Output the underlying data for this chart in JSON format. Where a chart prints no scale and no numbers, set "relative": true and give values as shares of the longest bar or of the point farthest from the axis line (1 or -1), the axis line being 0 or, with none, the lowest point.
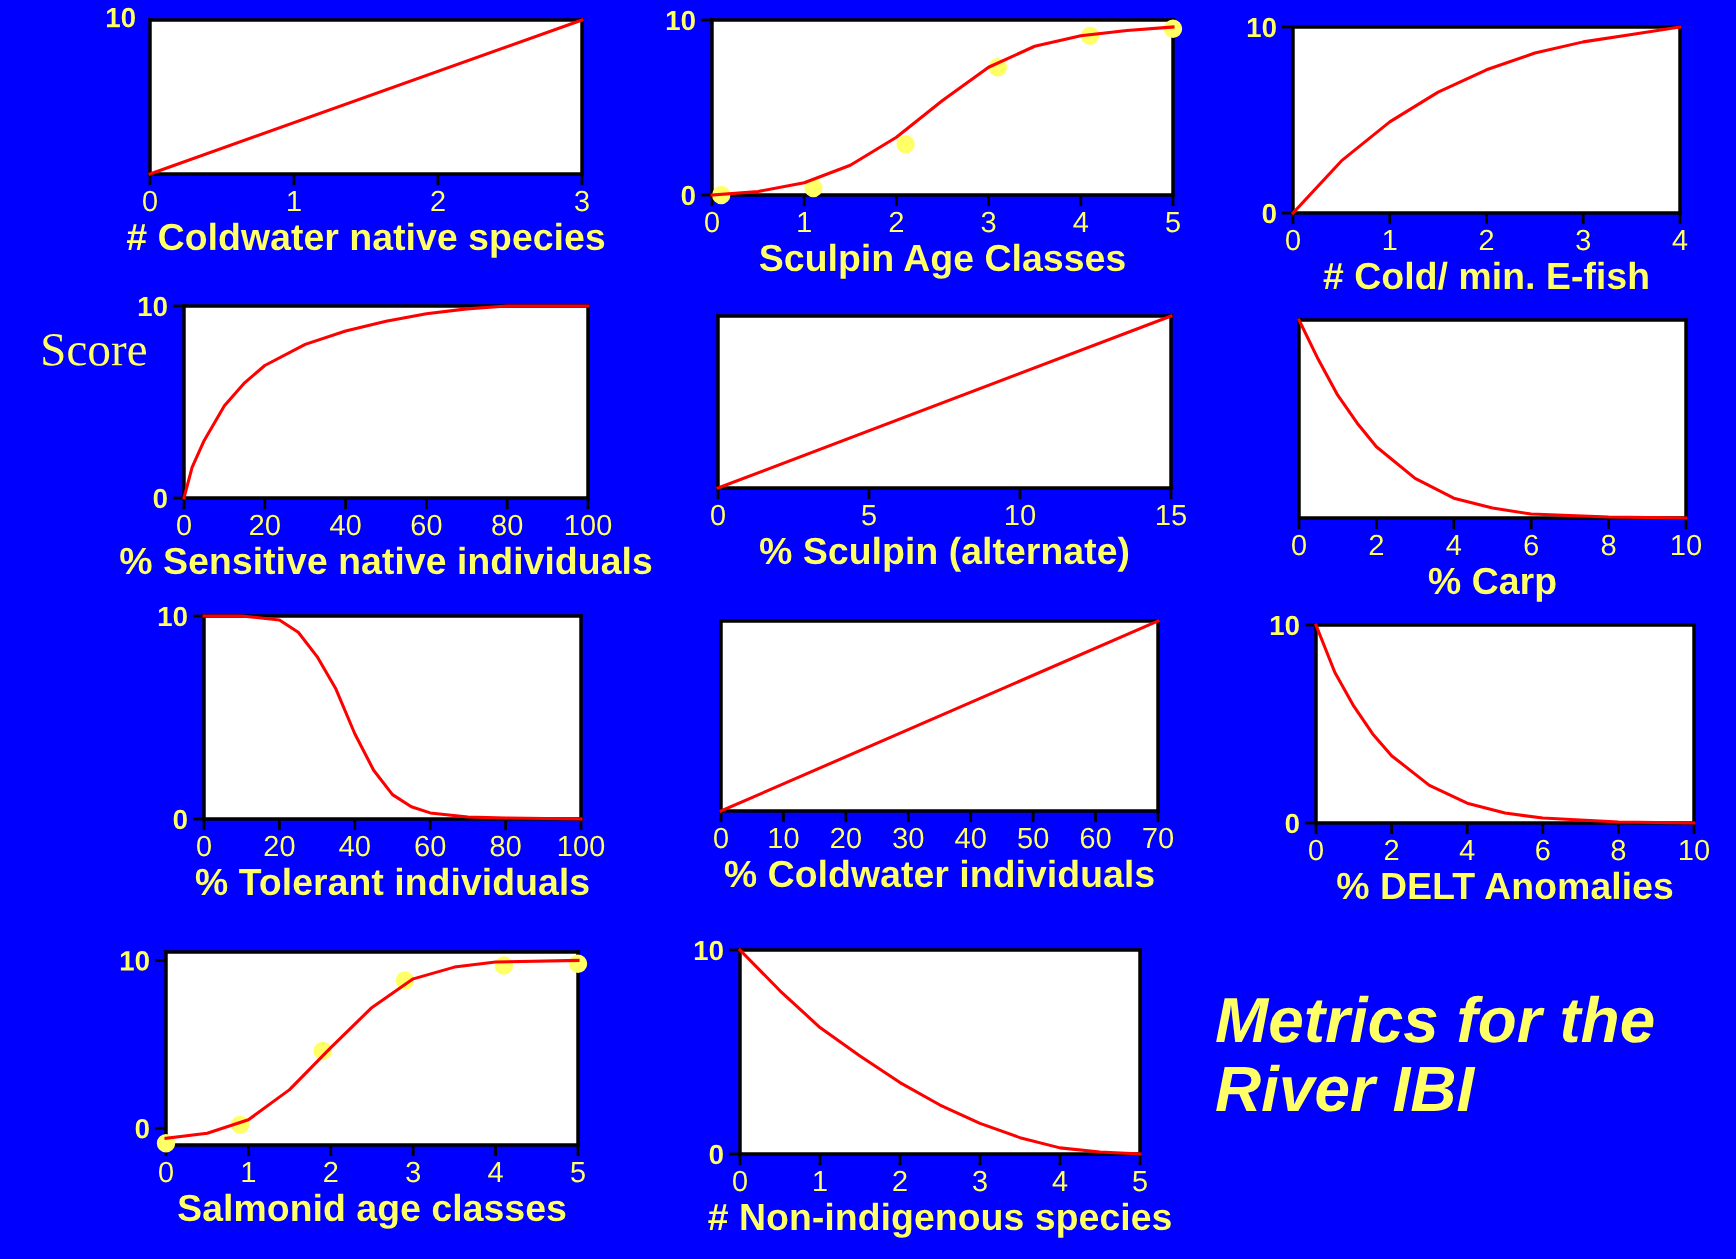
{
  "chart_data": [
    {
      "type": "line",
      "xlabel": "# Coldwater native species",
      "relative": true,
      "xlim": [
        0,
        3
      ],
      "xticks": [
        0,
        1,
        2,
        3
      ],
      "annotations": [
        "10"
      ],
      "series": [
        {
          "type": "line",
          "color": "#ff0000",
          "x": [
            0,
            3
          ],
          "values": [
            0,
            1
          ]
        }
      ]
    },
    {
      "type": "line",
      "xlabel": "Sculpin Age Classes",
      "xlim": [
        0,
        5
      ],
      "xticks": [
        0,
        1,
        2,
        3,
        4,
        5
      ],
      "ylim": [
        0,
        10
      ],
      "yticks": [
        0,
        10
      ],
      "series": [
        {
          "type": "line",
          "color": "#ff0000",
          "x": [
            0,
            0.5,
            1,
            1.5,
            2,
            2.5,
            3,
            3.5,
            4,
            4.5,
            5
          ],
          "values": [
            0,
            0.2,
            0.7,
            1.7,
            3.3,
            5.4,
            7.3,
            8.5,
            9.1,
            9.4,
            9.6
          ]
        },
        {
          "type": "scatter",
          "color": "#ffff66",
          "marker": "circle",
          "x": [
            0.1,
            1.1,
            2.1,
            3.1,
            4.1,
            5
          ],
          "values": [
            0,
            0.4,
            2.9,
            7.3,
            9.1,
            9.5
          ]
        }
      ]
    },
    {
      "type": "line",
      "xlabel": "# Cold/ min. E-fish",
      "xlim": [
        0,
        4
      ],
      "xticks": [
        0,
        1,
        2,
        3,
        4
      ],
      "ylim": [
        0,
        10
      ],
      "yticks": [
        0,
        10
      ],
      "series": [
        {
          "type": "line",
          "color": "#ff0000",
          "x": [
            0,
            0.5,
            1,
            1.5,
            2,
            2.5,
            3,
            3.5,
            4
          ],
          "values": [
            0,
            2.8,
            4.9,
            6.5,
            7.7,
            8.6,
            9.2,
            9.6,
            10
          ]
        }
      ]
    },
    {
      "type": "line",
      "xlabel": "% Sensitive native individuals",
      "ylabel": "Score",
      "xlim": [
        0,
        100
      ],
      "xticks": [
        0,
        20,
        40,
        60,
        80,
        100
      ],
      "ylim": [
        0,
        10
      ],
      "yticks": [
        0,
        10
      ],
      "series": [
        {
          "type": "line",
          "color": "#ff0000",
          "x": [
            0,
            2,
            5,
            10,
            15,
            20,
            30,
            40,
            50,
            60,
            70,
            80,
            100
          ],
          "values": [
            0,
            1.6,
            3,
            4.8,
            6,
            6.9,
            8,
            8.7,
            9.2,
            9.6,
            9.85,
            10,
            10
          ]
        }
      ]
    },
    {
      "type": "line",
      "xlabel": "% Sculpin (alternate)",
      "relative": true,
      "xlim": [
        0,
        15
      ],
      "xticks": [
        0,
        5,
        10,
        15
      ],
      "series": [
        {
          "type": "line",
          "color": "#ff0000",
          "x": [
            0,
            15
          ],
          "values": [
            0,
            1
          ]
        }
      ]
    },
    {
      "type": "line",
      "xlabel": "% Carp",
      "relative": true,
      "xlim": [
        0,
        10
      ],
      "xticks": [
        0,
        2,
        4,
        6,
        8,
        10
      ],
      "series": [
        {
          "type": "line",
          "color": "#ff0000",
          "x": [
            0,
            0.5,
            1,
            1.5,
            2,
            3,
            4,
            5,
            6,
            8,
            10
          ],
          "values": [
            1,
            0.8,
            0.62,
            0.48,
            0.36,
            0.2,
            0.1,
            0.05,
            0.02,
            0.005,
            0
          ]
        }
      ]
    },
    {
      "type": "line",
      "xlabel": "% Tolerant individuals",
      "xlim": [
        0,
        100
      ],
      "xticks": [
        0,
        20,
        40,
        60,
        80,
        100
      ],
      "ylim": [
        0,
        10
      ],
      "yticks": [
        0,
        10
      ],
      "series": [
        {
          "type": "line",
          "color": "#ff0000",
          "x": [
            0,
            10,
            20,
            25,
            30,
            35,
            40,
            45,
            50,
            55,
            60,
            70,
            80,
            100
          ],
          "values": [
            10,
            10,
            9.8,
            9.2,
            8,
            6.4,
            4.2,
            2.4,
            1.2,
            0.6,
            0.3,
            0.1,
            0.05,
            0
          ]
        }
      ]
    },
    {
      "type": "line",
      "xlabel": "% Coldwater individuals",
      "relative": true,
      "xlim": [
        0,
        70
      ],
      "xticks": [
        0,
        10,
        20,
        30,
        40,
        50,
        60,
        70
      ],
      "series": [
        {
          "type": "line",
          "color": "#ff0000",
          "x": [
            0,
            70
          ],
          "values": [
            0,
            1
          ]
        }
      ]
    },
    {
      "type": "line",
      "xlabel": "% DELT Anomalies",
      "xlim": [
        0,
        10
      ],
      "xticks": [
        0,
        2,
        4,
        6,
        8,
        10
      ],
      "ylim": [
        0,
        10
      ],
      "yticks": [
        0,
        10
      ],
      "series": [
        {
          "type": "line",
          "color": "#ff0000",
          "x": [
            0,
            0.5,
            1,
            1.5,
            2,
            3,
            4,
            5,
            6,
            8,
            10
          ],
          "values": [
            10,
            7.6,
            5.9,
            4.5,
            3.4,
            1.9,
            1,
            0.5,
            0.25,
            0.05,
            0
          ]
        }
      ]
    },
    {
      "type": "line",
      "xlabel": "Salmonid age classes",
      "xlim": [
        0,
        5
      ],
      "xticks": [
        0,
        1,
        2,
        3,
        4,
        5
      ],
      "ylim": [
        -1,
        10.5
      ],
      "yticks": [
        0,
        10
      ],
      "series": [
        {
          "type": "line",
          "color": "#ff0000",
          "x": [
            0,
            0.5,
            1,
            1.5,
            2,
            2.5,
            3,
            3.5,
            4,
            5
          ],
          "values": [
            -0.6,
            -0.3,
            0.5,
            2.3,
            4.8,
            7.2,
            8.9,
            9.6,
            9.9,
            10
          ]
        },
        {
          "type": "scatter",
          "color": "#ffff66",
          "marker": "circle",
          "x": [
            0,
            0.9,
            1.9,
            2.9,
            4.1,
            5
          ],
          "values": [
            -0.9,
            0.2,
            4.6,
            8.8,
            9.7,
            9.8
          ]
        }
      ]
    },
    {
      "type": "line",
      "xlabel": "# Non-indigenous species",
      "xlim": [
        0,
        5
      ],
      "xticks": [
        0,
        1,
        2,
        3,
        4,
        5
      ],
      "ylim": [
        0,
        10
      ],
      "yticks": [
        0,
        10
      ],
      "series": [
        {
          "type": "line",
          "color": "#ff0000",
          "x": [
            0,
            0.5,
            1,
            1.5,
            2,
            2.5,
            3,
            3.5,
            4,
            4.5,
            5
          ],
          "values": [
            10,
            8,
            6.2,
            4.8,
            3.5,
            2.4,
            1.5,
            0.8,
            0.3,
            0.1,
            0
          ]
        }
      ]
    },
    {
      "type": "other",
      "title": "Metrics for the\nRiver IBI"
    }
  ]
}
